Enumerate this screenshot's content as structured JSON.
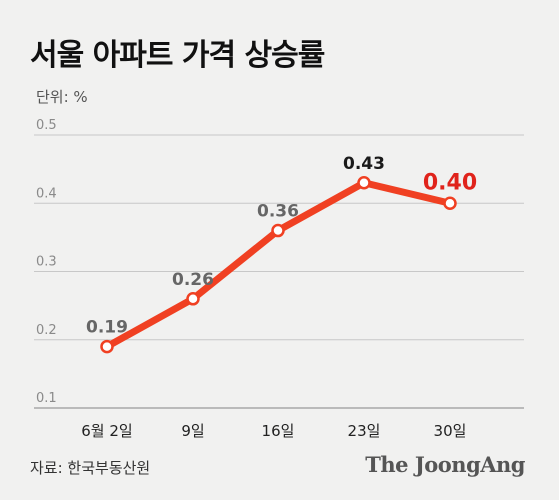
{
  "header": {
    "title": "서울 아파트 가격 상승률",
    "unit": "단위: %"
  },
  "footer": {
    "source": "자료: 한국부동산원",
    "logo": "The JoongAng"
  },
  "colors": {
    "line": "#f04022",
    "grid": "#c8c8c8",
    "highlight": "#e0231b",
    "background": "#f1f1f0"
  },
  "chart_data": {
    "type": "line",
    "title": "서울 아파트 가격 상승률",
    "ylabel": "단위: %",
    "categories": [
      "6월 2일",
      "9일",
      "16일",
      "23일",
      "30일"
    ],
    "values": [
      0.19,
      0.26,
      0.36,
      0.43,
      0.4
    ],
    "data_labels": [
      "0.19",
      "0.26",
      "0.36",
      "0.43",
      "0.40"
    ],
    "y_ticks": [
      0.5,
      0.4,
      0.3,
      0.2,
      0.1
    ],
    "y_tick_labels": [
      "0.5",
      "0.4",
      "0.3",
      "0.2",
      "0.1"
    ],
    "ylim": [
      0.1,
      0.5
    ],
    "grid": true,
    "legend": "none"
  }
}
